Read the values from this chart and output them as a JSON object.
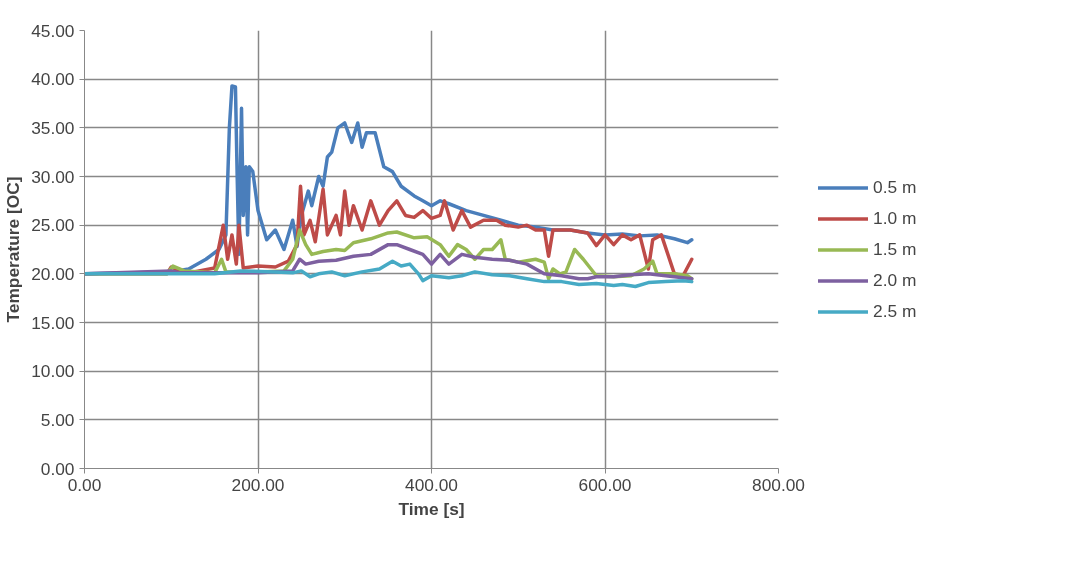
{
  "chart_data": {
    "type": "line",
    "xlabel": "Time [s]",
    "ylabel": "Temperature [OC]",
    "xlim": [
      0,
      800
    ],
    "ylim": [
      0,
      45
    ],
    "xticks": [
      {
        "value": 0,
        "label": "0.00"
      },
      {
        "value": 200,
        "label": "200.00"
      },
      {
        "value": 400,
        "label": "400.00"
      },
      {
        "value": 600,
        "label": "600.00"
      },
      {
        "value": 800,
        "label": "800.00"
      }
    ],
    "yticks": [
      {
        "value": 0,
        "label": "0.00"
      },
      {
        "value": 5,
        "label": "5.00"
      },
      {
        "value": 10,
        "label": "10.00"
      },
      {
        "value": 15,
        "label": "15.00"
      },
      {
        "value": 20,
        "label": "20.00"
      },
      {
        "value": 25,
        "label": "25.00"
      },
      {
        "value": 30,
        "label": "30.00"
      },
      {
        "value": 35,
        "label": "35.00"
      },
      {
        "value": 40,
        "label": "40.00"
      },
      {
        "value": 45,
        "label": "45.00"
      }
    ],
    "grid": true,
    "legend": "right",
    "marker": "none",
    "line_style": "solid",
    "series": [
      {
        "name": "0.5 m",
        "color": "#4a7ebb",
        "x": [
          0,
          100,
          120,
          140,
          155,
          163,
          167,
          170,
          174,
          176,
          178,
          181,
          183,
          186,
          188,
          190,
          194,
          200,
          210,
          220,
          230,
          240,
          245,
          250,
          258,
          262,
          270,
          275,
          280,
          285,
          292,
          300,
          308,
          315,
          320,
          325,
          335,
          345,
          355,
          365,
          380,
          390,
          400,
          410,
          420,
          440,
          460,
          480,
          500,
          520,
          540,
          560,
          580,
          600,
          620,
          640,
          660,
          680,
          695,
          700
        ],
        "values": [
          20,
          20.2,
          20.5,
          21.5,
          22.5,
          24,
          35,
          39.3,
          39.2,
          30,
          22,
          37,
          26,
          31,
          24,
          31,
          30.5,
          26.5,
          23.5,
          24.5,
          22.5,
          25.5,
          22.8,
          26,
          28.5,
          27,
          30,
          29,
          32,
          32.5,
          35,
          35.5,
          33.5,
          35.5,
          33,
          34.5,
          34.5,
          31,
          30.5,
          29,
          28,
          27.5,
          27,
          27.5,
          27.2,
          26.5,
          26,
          25.5,
          25,
          24.8,
          24.5,
          24.5,
          24.2,
          24,
          24.1,
          23.9,
          24,
          23.6,
          23.2,
          23.5
        ]
      },
      {
        "name": "1.0 m",
        "color": "#be4b48",
        "x": [
          0,
          95,
          100,
          110,
          120,
          150,
          160,
          165,
          170,
          175,
          178,
          183,
          200,
          220,
          235,
          245,
          249,
          253,
          260,
          266,
          275,
          280,
          290,
          295,
          300,
          305,
          310,
          320,
          330,
          340,
          350,
          360,
          370,
          380,
          390,
          400,
          410,
          415,
          425,
          435,
          445,
          460,
          475,
          485,
          500,
          510,
          520,
          530,
          535,
          540,
          560,
          580,
          590,
          600,
          610,
          620,
          630,
          640,
          650,
          655,
          665,
          680,
          690,
          700
        ],
        "values": [
          20,
          20,
          20.7,
          20.3,
          20.1,
          20.6,
          25,
          21.5,
          24,
          21,
          25,
          20.6,
          20.8,
          20.7,
          21.3,
          23,
          29,
          24,
          25.5,
          23.3,
          28.7,
          24,
          26,
          24,
          28.5,
          25,
          27,
          24.5,
          27.5,
          25,
          26.5,
          27.5,
          26,
          25.8,
          26.5,
          25.7,
          26,
          27.5,
          24.5,
          26.5,
          24.8,
          25.5,
          25.5,
          25,
          24.8,
          25,
          24.5,
          24.5,
          21.8,
          24.5,
          24.5,
          24.2,
          22.9,
          24,
          23,
          24,
          23.5,
          24,
          20.5,
          23.5,
          24,
          20,
          19.8,
          21.5
        ]
      },
      {
        "name": "1.5 m",
        "color": "#98b954",
        "x": [
          0,
          95,
          102,
          115,
          150,
          158,
          163,
          200,
          230,
          240,
          248,
          255,
          262,
          275,
          290,
          300,
          310,
          330,
          350,
          360,
          380,
          395,
          410,
          420,
          430,
          440,
          450,
          460,
          470,
          480,
          485,
          500,
          520,
          530,
          535,
          540,
          548,
          555,
          565,
          575,
          590,
          610,
          630,
          645,
          655,
          660,
          680,
          695,
          700
        ],
        "values": [
          20,
          20,
          20.8,
          20.3,
          20.1,
          21.5,
          20.2,
          20.2,
          20.3,
          21.5,
          24.5,
          23,
          22,
          22.3,
          22.5,
          22.4,
          23.2,
          23.6,
          24.2,
          24.3,
          23.7,
          23.8,
          23,
          21.8,
          23,
          22.5,
          21.5,
          22.5,
          22.5,
          23.5,
          21.5,
          21.2,
          21.5,
          21.2,
          19.5,
          20.5,
          20,
          20.2,
          22.5,
          21.5,
          19.8,
          19.7,
          19.8,
          20.5,
          21.3,
          20,
          20,
          19.8,
          19.5
        ]
      },
      {
        "name": "2.0 m",
        "color": "#7d60a0",
        "x": [
          0,
          100,
          110,
          200,
          240,
          248,
          255,
          270,
          290,
          310,
          330,
          350,
          360,
          375,
          390,
          400,
          410,
          420,
          435,
          450,
          470,
          490,
          510,
          530,
          550,
          570,
          580,
          590,
          610,
          630,
          650,
          670,
          700
        ],
        "values": [
          20,
          20.3,
          20.1,
          20.1,
          20.3,
          21.5,
          21,
          21.3,
          21.4,
          21.8,
          22,
          23,
          23,
          22.5,
          22,
          21,
          22,
          21,
          22,
          21.7,
          21.5,
          21.4,
          21,
          20,
          19.8,
          19.5,
          19.5,
          19.7,
          19.7,
          19.9,
          20,
          19.8,
          19.5
        ]
      },
      {
        "name": "2.5 m",
        "color": "#46aac5",
        "x": [
          0,
          150,
          180,
          220,
          240,
          250,
          260,
          270,
          285,
          300,
          320,
          340,
          355,
          365,
          375,
          385,
          390,
          400,
          420,
          435,
          450,
          470,
          490,
          510,
          530,
          550,
          570,
          590,
          610,
          620,
          635,
          650,
          670,
          690,
          700
        ],
        "values": [
          20,
          20,
          20.3,
          20.2,
          20.1,
          20.3,
          19.7,
          20,
          20.2,
          19.8,
          20.2,
          20.5,
          21.3,
          20.8,
          21,
          20,
          19.3,
          19.8,
          19.6,
          19.8,
          20.2,
          19.9,
          19.8,
          19.5,
          19.2,
          19.2,
          18.9,
          19,
          18.8,
          18.9,
          18.7,
          19.1,
          19.2,
          19.3,
          19.2
        ]
      }
    ]
  }
}
